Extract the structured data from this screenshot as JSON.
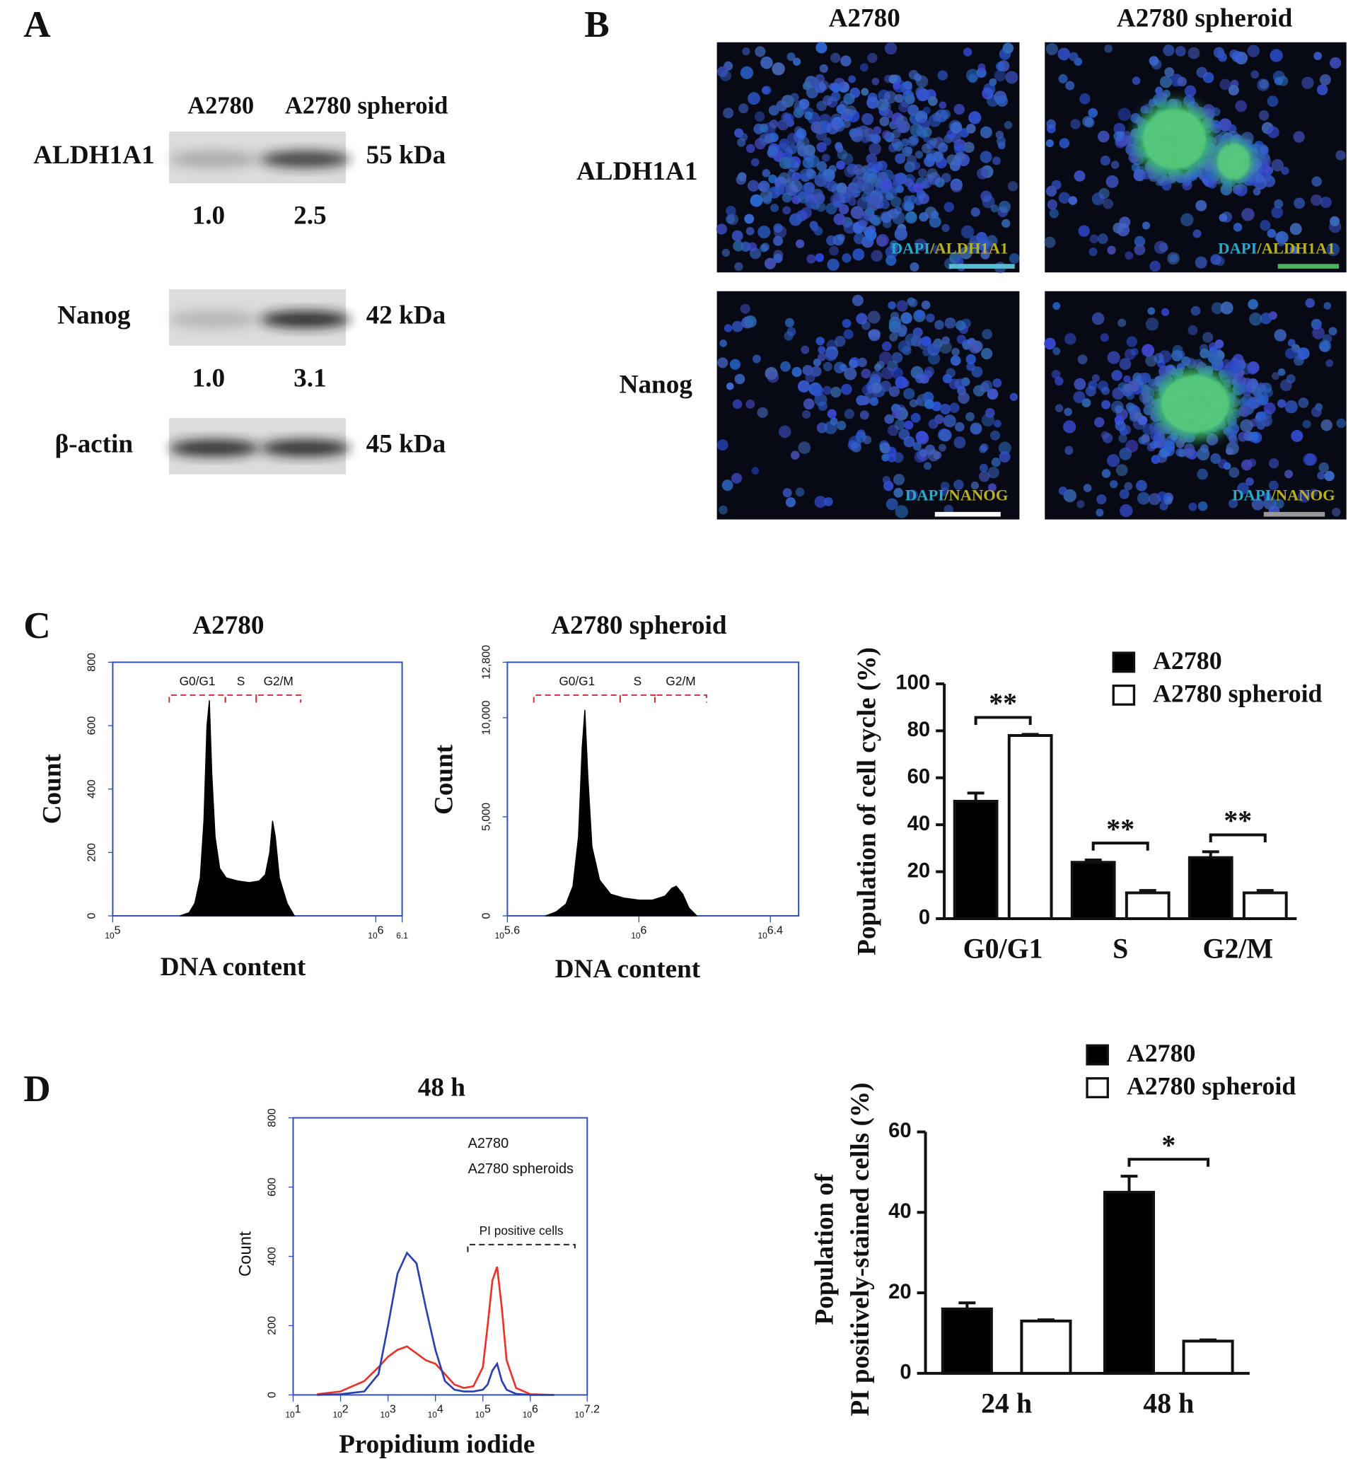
{
  "panel_labels": [
    "A",
    "B",
    "C",
    "D"
  ],
  "western_blot": {
    "columns": [
      "A2780",
      "A2780 spheroid"
    ],
    "rows": [
      {
        "protein": "ALDH1A1",
        "size": "55 kDa",
        "ratios": [
          "1.0",
          "2.5"
        ]
      },
      {
        "protein": "Nanog",
        "size": "42 kDa",
        "ratios": [
          "1.0",
          "3.1"
        ]
      },
      {
        "protein": "β-actin",
        "size": "45 kDa"
      }
    ]
  },
  "immunofluorescence": {
    "columns": [
      "A2780",
      "A2780 spheroid"
    ],
    "rows": [
      {
        "label": "ALDH1A1",
        "caption": [
          "DAPI",
          "/ALDH1A1"
        ]
      },
      {
        "label": "Nanog",
        "caption": [
          "DAPI",
          "/NANOG"
        ]
      }
    ]
  },
  "chart_data": [
    {
      "type": "area",
      "title": "A2780",
      "x_label": "DNA content",
      "y_label": "Count",
      "log_x": true,
      "color": "#000000",
      "x": [
        180000,
        195000,
        205000,
        215000,
        222000,
        228000,
        233000,
        238000,
        245000,
        255000,
        270000,
        300000,
        330000,
        360000,
        380000,
        395000,
        405000,
        415000,
        430000,
        460000,
        490000
      ],
      "values": [
        0,
        10,
        40,
        120,
        300,
        600,
        680,
        450,
        250,
        150,
        120,
        110,
        105,
        110,
        130,
        200,
        300,
        250,
        120,
        40,
        0
      ],
      "xlim": [
        100000,
        1258925
      ],
      "xticks": [
        {
          "value": 100000,
          "label": "10^5"
        },
        {
          "value": 1000000,
          "label": "10^6"
        },
        {
          "value": 1258925,
          "label": "6.1"
        }
      ],
      "ylim": [
        0,
        800
      ],
      "yticks": [
        0,
        200,
        400,
        600,
        800
      ],
      "gates": [
        {
          "name": "G0/G1",
          "range": [
            164000,
            268000
          ]
        },
        {
          "name": "S",
          "range": [
            268000,
            351000
          ]
        },
        {
          "name": "G2/M",
          "range": [
            351000,
            518000
          ]
        }
      ]
    },
    {
      "type": "area",
      "title": "A2780 spheroid",
      "x_label": "DNA content",
      "y_label": "Count",
      "log_x": true,
      "color": "#000000",
      "x": [
        520000,
        560000,
        600000,
        630000,
        655000,
        672000,
        685000,
        700000,
        720000,
        760000,
        820000,
        900000,
        1000000,
        1100000,
        1200000,
        1260000,
        1300000,
        1360000,
        1420000,
        1500000
      ],
      "values": [
        0,
        200,
        600,
        1500,
        4000,
        8500,
        10400,
        7000,
        3500,
        1800,
        1100,
        900,
        800,
        800,
        1000,
        1400,
        1500,
        1100,
        400,
        0
      ],
      "xlim": [
        398107,
        3062000
      ],
      "xticks": [
        {
          "value": 398107,
          "label": "10^5.6"
        },
        {
          "value": 1000000,
          "label": "10^6"
        },
        {
          "value": 2511886,
          "label": "10^6.4"
        }
      ],
      "ylim": [
        0,
        12800
      ],
      "yticks": [
        0,
        {
          "value": 5000,
          "label": "5,000"
        },
        {
          "value": 10000,
          "label": "10,000"
        },
        {
          "value": 12800,
          "label": "12,800"
        }
      ],
      "gates": [
        {
          "name": "G0/G1",
          "range": [
            479000,
            877000
          ]
        },
        {
          "name": "S",
          "range": [
            877000,
            1119000
          ]
        },
        {
          "name": "G2/M",
          "range": [
            1119000,
            1607000
          ]
        }
      ]
    },
    {
      "type": "bar",
      "y_label": "Population of cell cycle (%)",
      "categories": [
        "G0/G1",
        "S",
        "G2/M"
      ],
      "series": [
        {
          "name": "A2780",
          "color": "#000000",
          "values": [
            50,
            24,
            26
          ],
          "errors": [
            3.5,
            1,
            2.5
          ]
        },
        {
          "name": "A2780 spheroid",
          "color": "#ffffff",
          "values": [
            78,
            11,
            11
          ],
          "errors": [
            0.5,
            1,
            1
          ]
        }
      ],
      "ylim": [
        0,
        100
      ],
      "yticks": [
        0,
        20,
        40,
        60,
        80,
        100
      ],
      "significance": [
        "**",
        "**",
        "**"
      ]
    },
    {
      "type": "line",
      "title": "48 h",
      "x_label": "Propidium iodide",
      "y_label": "Count",
      "log_x": true,
      "x": [
        32,
        100,
        316,
        631,
        1000,
        1585,
        2512,
        3981,
        6310,
        10000,
        15849,
        25119,
        39811,
        63096,
        100000,
        125893,
        158489,
        199526,
        251189,
        316228,
        501187,
        1000000,
        3162278
      ],
      "series": [
        {
          "name": "A2780",
          "color": "#e8332a",
          "values": [
            2,
            10,
            40,
            80,
            110,
            130,
            140,
            120,
            100,
            90,
            60,
            30,
            20,
            25,
            80,
            200,
            330,
            370,
            250,
            100,
            20,
            2,
            0
          ]
        },
        {
          "name": "A2780 spheroids",
          "color": "#2a3fb0",
          "values": [
            0,
            2,
            10,
            60,
            200,
            350,
            410,
            380,
            250,
            130,
            40,
            15,
            10,
            10,
            15,
            30,
            70,
            90,
            40,
            15,
            3,
            0,
            0
          ]
        }
      ],
      "xlim": [
        10,
        15848932
      ],
      "xticks": [
        {
          "value": 10,
          "label": "10^1"
        },
        {
          "value": 100,
          "label": "10^2"
        },
        {
          "value": 1000,
          "label": "10^3"
        },
        {
          "value": 10000,
          "label": "10^4"
        },
        {
          "value": 100000,
          "label": "10^5"
        },
        {
          "value": 1000000,
          "label": "10^6"
        },
        {
          "value": 15848932,
          "label": "10^7.2"
        }
      ],
      "ylim": [
        0,
        800
      ],
      "yticks": [
        0,
        200,
        400,
        600,
        800
      ],
      "gates": [
        {
          "name": "PI positive cells",
          "range": [
            48000,
            8700000
          ]
        }
      ]
    },
    {
      "type": "bar",
      "y_label": [
        "Population of",
        "PI positively-stained cells (%)"
      ],
      "categories": [
        "24 h",
        "48 h"
      ],
      "series": [
        {
          "name": "A2780",
          "color": "#000000",
          "values": [
            16,
            45
          ],
          "errors": [
            1.5,
            4
          ]
        },
        {
          "name": "A2780 spheroid",
          "color": "#ffffff",
          "values": [
            13,
            8
          ],
          "errors": [
            0.3,
            0.3
          ]
        }
      ],
      "ylim": [
        0,
        60
      ],
      "yticks": [
        0,
        20,
        40,
        60
      ],
      "significance": [
        null,
        "*"
      ]
    }
  ]
}
